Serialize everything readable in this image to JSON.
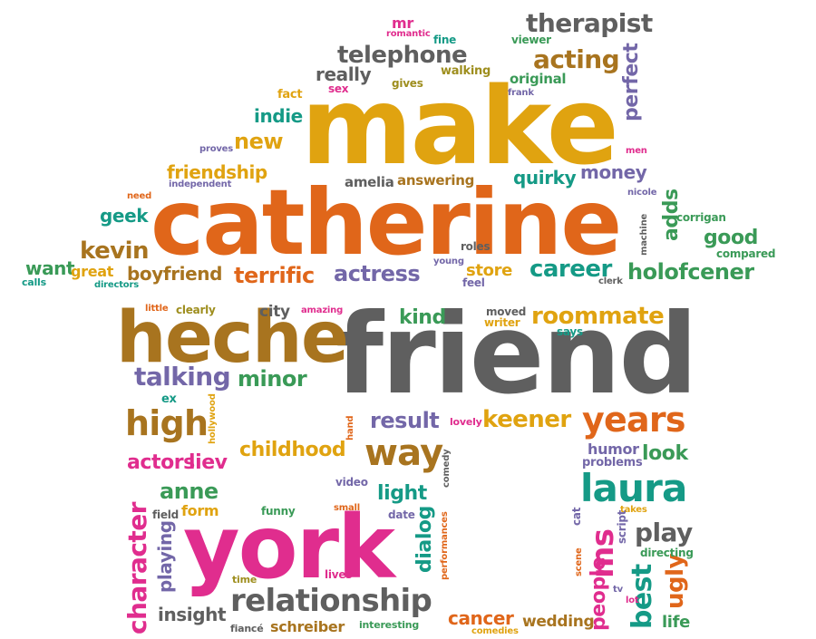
{
  "palette": {
    "gold": "#e0a310",
    "orange": "#e0661a",
    "brown": "#a8741f",
    "gray": "#5f5f5f",
    "pink": "#e02d8e",
    "green": "#3a9a57",
    "teal": "#159a86",
    "purple": "#7367a8",
    "olive": "#9e8e1e"
  },
  "words": [
    {
      "text": "make",
      "color": "gold"
    },
    {
      "text": "catherine",
      "color": "orange"
    },
    {
      "text": "friend",
      "color": "gray"
    },
    {
      "text": "heche",
      "color": "brown"
    },
    {
      "text": "york",
      "color": "pink"
    },
    {
      "text": "relationship",
      "color": "gray"
    },
    {
      "text": "therapist",
      "color": "gray"
    },
    {
      "text": "telephone",
      "color": "gray"
    },
    {
      "text": "acting",
      "color": "brown"
    },
    {
      "text": "perfect",
      "color": "purple"
    },
    {
      "text": "original",
      "color": "green"
    },
    {
      "text": "really",
      "color": "gray"
    },
    {
      "text": "indie",
      "color": "teal"
    },
    {
      "text": "new",
      "color": "gold"
    },
    {
      "text": "friendship",
      "color": "gold"
    },
    {
      "text": "quirky",
      "color": "teal"
    },
    {
      "text": "money",
      "color": "purple"
    },
    {
      "text": "amelia",
      "color": "gray"
    },
    {
      "text": "answering",
      "color": "brown"
    },
    {
      "text": "geek",
      "color": "teal"
    },
    {
      "text": "kevin",
      "color": "brown"
    },
    {
      "text": "want",
      "color": "green"
    },
    {
      "text": "great",
      "color": "gold"
    },
    {
      "text": "boyfriend",
      "color": "brown"
    },
    {
      "text": "terrific",
      "color": "orange"
    },
    {
      "text": "actress",
      "color": "purple"
    },
    {
      "text": "store",
      "color": "gold"
    },
    {
      "text": "career",
      "color": "teal"
    },
    {
      "text": "holofcener",
      "color": "green"
    },
    {
      "text": "adds",
      "color": "green"
    },
    {
      "text": "good",
      "color": "green"
    },
    {
      "text": "roommate",
      "color": "gold"
    },
    {
      "text": "kind",
      "color": "green"
    },
    {
      "text": "city",
      "color": "gray"
    },
    {
      "text": "talking",
      "color": "purple"
    },
    {
      "text": "minor",
      "color": "green"
    },
    {
      "text": "high",
      "color": "brown"
    },
    {
      "text": "result",
      "color": "purple"
    },
    {
      "text": "keener",
      "color": "gold"
    },
    {
      "text": "years",
      "color": "orange"
    },
    {
      "text": "childhood",
      "color": "gold"
    },
    {
      "text": "way",
      "color": "brown"
    },
    {
      "text": "actors",
      "color": "pink"
    },
    {
      "text": "liev",
      "color": "pink"
    },
    {
      "text": "anne",
      "color": "green"
    },
    {
      "text": "form",
      "color": "gold"
    },
    {
      "text": "light",
      "color": "teal"
    },
    {
      "text": "laura",
      "color": "teal"
    },
    {
      "text": "look",
      "color": "green"
    },
    {
      "text": "humor",
      "color": "purple"
    },
    {
      "text": "problems",
      "color": "purple"
    },
    {
      "text": "play",
      "color": "gray"
    },
    {
      "text": "insight",
      "color": "gray"
    },
    {
      "text": "schreiber",
      "color": "brown"
    },
    {
      "text": "cancer",
      "color": "orange"
    },
    {
      "text": "wedding",
      "color": "brown"
    },
    {
      "text": "life",
      "color": "green"
    },
    {
      "text": "character",
      "color": "pink"
    },
    {
      "text": "playing",
      "color": "purple"
    },
    {
      "text": "dialog",
      "color": "teal"
    },
    {
      "text": "ms",
      "color": "pink"
    },
    {
      "text": "people",
      "color": "pink"
    },
    {
      "text": "best",
      "color": "teal"
    },
    {
      "text": "ugly",
      "color": "orange"
    },
    {
      "text": "mr",
      "color": "pink"
    },
    {
      "text": "romantic",
      "color": "pink"
    },
    {
      "text": "fine",
      "color": "teal"
    },
    {
      "text": "viewer",
      "color": "green"
    },
    {
      "text": "walking",
      "color": "olive"
    },
    {
      "text": "gives",
      "color": "olive"
    },
    {
      "text": "frank",
      "color": "purple"
    },
    {
      "text": "fact",
      "color": "gold"
    },
    {
      "text": "sex",
      "color": "pink"
    },
    {
      "text": "proves",
      "color": "purple"
    },
    {
      "text": "independent",
      "color": "purple"
    },
    {
      "text": "need",
      "color": "orange"
    },
    {
      "text": "men",
      "color": "pink"
    },
    {
      "text": "nicole",
      "color": "purple"
    },
    {
      "text": "corrigan",
      "color": "green"
    },
    {
      "text": "machine",
      "color": "gray"
    },
    {
      "text": "compared",
      "color": "green"
    },
    {
      "text": "roles",
      "color": "gray"
    },
    {
      "text": "young",
      "color": "purple"
    },
    {
      "text": "feel",
      "color": "purple"
    },
    {
      "text": "clerk",
      "color": "gray"
    },
    {
      "text": "calls",
      "color": "teal"
    },
    {
      "text": "directors",
      "color": "teal"
    },
    {
      "text": "little",
      "color": "orange"
    },
    {
      "text": "clearly",
      "color": "olive"
    },
    {
      "text": "amazing",
      "color": "pink"
    },
    {
      "text": "moved",
      "color": "gray"
    },
    {
      "text": "writer",
      "color": "gold"
    },
    {
      "text": "says",
      "color": "teal"
    },
    {
      "text": "ex",
      "color": "teal"
    },
    {
      "text": "hollywood",
      "color": "gold"
    },
    {
      "text": "lovely",
      "color": "pink"
    },
    {
      "text": "hand",
      "color": "orange"
    },
    {
      "text": "comedy",
      "color": "gray"
    },
    {
      "text": "video",
      "color": "purple"
    },
    {
      "text": "field",
      "color": "gray"
    },
    {
      "text": "funny",
      "color": "green"
    },
    {
      "text": "small",
      "color": "orange"
    },
    {
      "text": "date",
      "color": "purple"
    },
    {
      "text": "performances",
      "color": "orange"
    },
    {
      "text": "cat",
      "color": "purple"
    },
    {
      "text": "takes",
      "color": "gold"
    },
    {
      "text": "script",
      "color": "purple"
    },
    {
      "text": "directing",
      "color": "green"
    },
    {
      "text": "scene",
      "color": "orange"
    },
    {
      "text": "tv",
      "color": "purple"
    },
    {
      "text": "lot",
      "color": "pink"
    },
    {
      "text": "time",
      "color": "olive"
    },
    {
      "text": "lives",
      "color": "pink"
    },
    {
      "text": "fiancé",
      "color": "gray"
    },
    {
      "text": "interesting",
      "color": "green"
    },
    {
      "text": "comedies",
      "color": "gold"
    }
  ]
}
